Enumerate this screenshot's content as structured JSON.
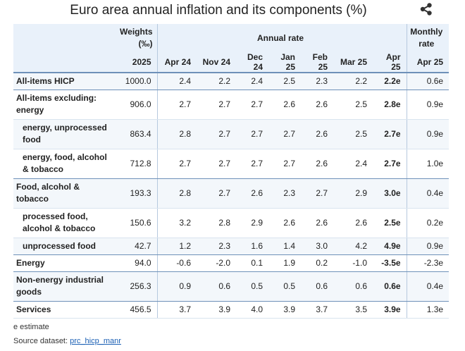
{
  "title": "Euro area annual inflation and its components (%)",
  "share_icon": "share-icon",
  "header": {
    "weights_label": "Weights (‰)",
    "annual_rate_label": "Annual rate",
    "monthly_rate_label": "Monthly rate",
    "weights_year": "2025",
    "columns": [
      "Apr 24",
      "Nov 24",
      "Dec 24",
      "Jan 25",
      "Feb 25",
      "Mar 25",
      "Apr 25"
    ],
    "monthly_column": "Apr 25"
  },
  "footer": {
    "note": "e estimate",
    "source_label": "Source dataset:",
    "source_link": "prc_hicp_manr"
  },
  "chart_data": {
    "type": "table",
    "title": "Euro area annual inflation and its components (%)",
    "columns": [
      "Weights 2025",
      "Apr 24",
      "Nov 24",
      "Dec 24",
      "Jan 25",
      "Feb 25",
      "Mar 25",
      "Apr 25",
      "Monthly rate Apr 25"
    ],
    "rows": [
      {
        "label": "All-items HICP",
        "indent": false,
        "weight": "1000.0",
        "values": [
          "2.4",
          "2.2",
          "2.4",
          "2.5",
          "2.3",
          "2.2",
          "2.2e"
        ],
        "monthly": "0.6e"
      },
      {
        "label": "All-items excluding: energy",
        "indent": false,
        "weight": "906.0",
        "values": [
          "2.7",
          "2.7",
          "2.7",
          "2.6",
          "2.6",
          "2.5",
          "2.8e"
        ],
        "monthly": "0.9e"
      },
      {
        "label": "energy, unprocessed food",
        "indent": true,
        "weight": "863.4",
        "values": [
          "2.8",
          "2.7",
          "2.7",
          "2.7",
          "2.6",
          "2.5",
          "2.7e"
        ],
        "monthly": "0.9e"
      },
      {
        "label": "energy, food, alcohol & tobacco",
        "indent": true,
        "weight": "712.8",
        "values": [
          "2.7",
          "2.7",
          "2.7",
          "2.7",
          "2.6",
          "2.4",
          "2.7e"
        ],
        "monthly": "1.0e"
      },
      {
        "label": "Food, alcohol & tobacco",
        "indent": false,
        "weight": "193.3",
        "values": [
          "2.8",
          "2.7",
          "2.6",
          "2.3",
          "2.7",
          "2.9",
          "3.0e"
        ],
        "monthly": "0.4e"
      },
      {
        "label": "processed food, alcohol & tobacco",
        "indent": true,
        "weight": "150.6",
        "values": [
          "3.2",
          "2.8",
          "2.9",
          "2.6",
          "2.6",
          "2.6",
          "2.5e"
        ],
        "monthly": "0.2e"
      },
      {
        "label": "unprocessed food",
        "indent": true,
        "weight": "42.7",
        "values": [
          "1.2",
          "2.3",
          "1.6",
          "1.4",
          "3.0",
          "4.2",
          "4.9e"
        ],
        "monthly": "0.9e"
      },
      {
        "label": "Energy",
        "indent": false,
        "weight": "94.0",
        "values": [
          "-0.6",
          "-2.0",
          "0.1",
          "1.9",
          "0.2",
          "-1.0",
          "-3.5e"
        ],
        "monthly": "-2.3e"
      },
      {
        "label": "Non-energy industrial goods",
        "indent": false,
        "weight": "256.3",
        "values": [
          "0.9",
          "0.6",
          "0.5",
          "0.5",
          "0.6",
          "0.6",
          "0.6e"
        ],
        "monthly": "0.4e"
      },
      {
        "label": "Services",
        "indent": false,
        "weight": "456.5",
        "values": [
          "3.7",
          "3.9",
          "4.0",
          "3.9",
          "3.7",
          "3.5",
          "3.9e"
        ],
        "monthly": "1.3e"
      }
    ]
  }
}
